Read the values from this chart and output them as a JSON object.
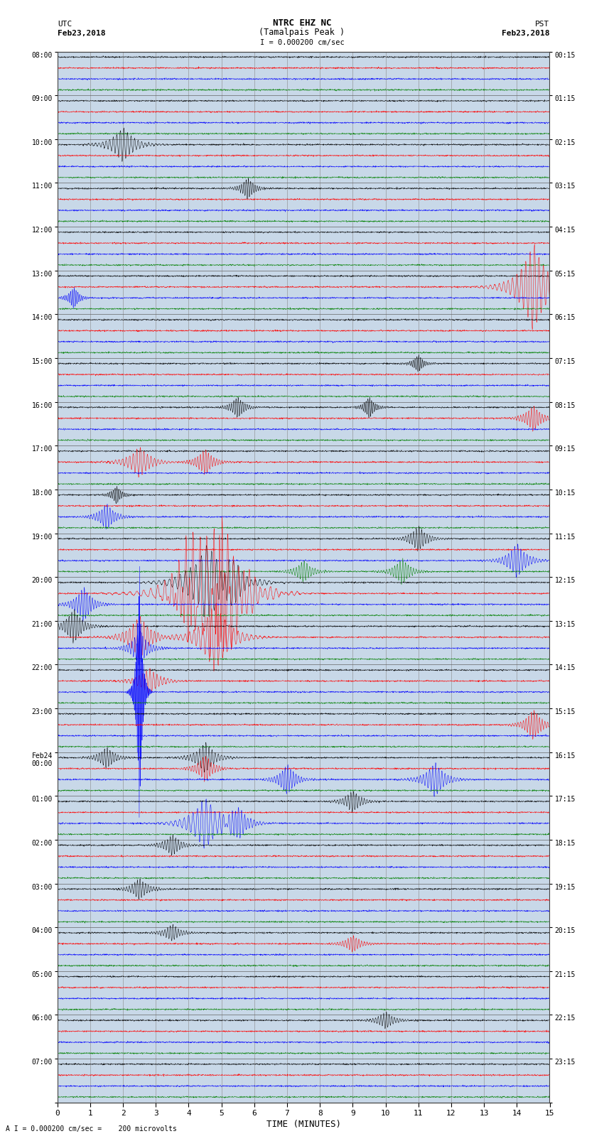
{
  "title_line1": "NTRC EHZ NC",
  "title_line2": "(Tamalpais Peak )",
  "title_line3": "I = 0.000200 cm/sec",
  "label_left_top": "UTC",
  "label_left_date": "Feb23,2018",
  "label_right_top": "PST",
  "label_right_date": "Feb23,2018",
  "xlabel": "TIME (MINUTES)",
  "footnote": "A I = 0.000200 cm/sec =    200 microvolts",
  "utc_times": [
    "08:00",
    "09:00",
    "10:00",
    "11:00",
    "12:00",
    "13:00",
    "14:00",
    "15:00",
    "16:00",
    "17:00",
    "18:00",
    "19:00",
    "20:00",
    "21:00",
    "22:00",
    "23:00",
    "Feb24\n00:00",
    "01:00",
    "02:00",
    "03:00",
    "04:00",
    "05:00",
    "06:00",
    "07:00"
  ],
  "pst_times": [
    "00:15",
    "01:15",
    "02:15",
    "03:15",
    "04:15",
    "05:15",
    "06:15",
    "07:15",
    "08:15",
    "09:15",
    "10:15",
    "11:15",
    "12:15",
    "13:15",
    "14:15",
    "15:15",
    "16:15",
    "17:15",
    "18:15",
    "19:15",
    "20:15",
    "21:15",
    "22:15",
    "23:15"
  ],
  "num_hours": 24,
  "traces_per_hour": 4,
  "colors": [
    "black",
    "red",
    "blue",
    "green"
  ],
  "bg_color": "white",
  "plot_bg": "#c8d8e8",
  "grid_color": "#888888",
  "xlim": [
    0,
    15
  ],
  "xticks": [
    0,
    1,
    2,
    3,
    4,
    5,
    6,
    7,
    8,
    9,
    10,
    11,
    12,
    13,
    14,
    15
  ],
  "events": [
    [
      2,
      0,
      2.0,
      4.0,
      0.4
    ],
    [
      3,
      0,
      5.8,
      2.5,
      0.25
    ],
    [
      5,
      1,
      14.5,
      10.0,
      0.5
    ],
    [
      5,
      2,
      0.5,
      2.5,
      0.2
    ],
    [
      7,
      0,
      11.0,
      2.0,
      0.2
    ],
    [
      8,
      0,
      5.5,
      2.5,
      0.25
    ],
    [
      8,
      0,
      9.5,
      2.5,
      0.2
    ],
    [
      8,
      1,
      14.5,
      3.0,
      0.3
    ],
    [
      9,
      1,
      2.5,
      3.5,
      0.4
    ],
    [
      9,
      1,
      4.5,
      3.0,
      0.3
    ],
    [
      10,
      2,
      1.5,
      3.0,
      0.3
    ],
    [
      10,
      0,
      1.8,
      2.0,
      0.2
    ],
    [
      11,
      0,
      11.0,
      3.0,
      0.3
    ],
    [
      11,
      2,
      14.0,
      4.0,
      0.35
    ],
    [
      11,
      3,
      7.5,
      2.5,
      0.3
    ],
    [
      11,
      3,
      10.5,
      3.0,
      0.3
    ],
    [
      12,
      2,
      0.8,
      4.0,
      0.3
    ],
    [
      12,
      0,
      4.5,
      8.0,
      0.6
    ],
    [
      12,
      1,
      4.5,
      12.0,
      0.8
    ],
    [
      12,
      1,
      5.5,
      8.0,
      0.6
    ],
    [
      12,
      0,
      5.2,
      6.0,
      0.5
    ],
    [
      12,
      1,
      5.0,
      15.0,
      0.3
    ],
    [
      12,
      1,
      4.0,
      10.0,
      0.4
    ],
    [
      13,
      0,
      0.5,
      4.0,
      0.3
    ],
    [
      13,
      1,
      4.8,
      8.0,
      0.5
    ],
    [
      13,
      2,
      2.5,
      4.0,
      0.3
    ],
    [
      13,
      1,
      2.5,
      5.0,
      0.4
    ],
    [
      14,
      1,
      2.8,
      3.0,
      0.4
    ],
    [
      14,
      2,
      2.5,
      30.0,
      0.1
    ],
    [
      15,
      1,
      14.5,
      3.5,
      0.3
    ],
    [
      16,
      0,
      1.5,
      2.5,
      0.3
    ],
    [
      16,
      1,
      4.5,
      3.0,
      0.3
    ],
    [
      16,
      0,
      4.5,
      3.5,
      0.35
    ],
    [
      16,
      2,
      7.0,
      3.5,
      0.3
    ],
    [
      16,
      2,
      11.5,
      4.0,
      0.35
    ],
    [
      17,
      2,
      4.5,
      6.0,
      0.5
    ],
    [
      17,
      2,
      5.5,
      4.0,
      0.35
    ],
    [
      17,
      0,
      9.0,
      2.5,
      0.3
    ],
    [
      18,
      0,
      3.5,
      2.5,
      0.3
    ],
    [
      19,
      0,
      2.5,
      2.5,
      0.3
    ],
    [
      20,
      0,
      3.5,
      2.0,
      0.3
    ],
    [
      20,
      1,
      9.0,
      2.0,
      0.3
    ],
    [
      22,
      0,
      10.0,
      2.0,
      0.3
    ]
  ]
}
